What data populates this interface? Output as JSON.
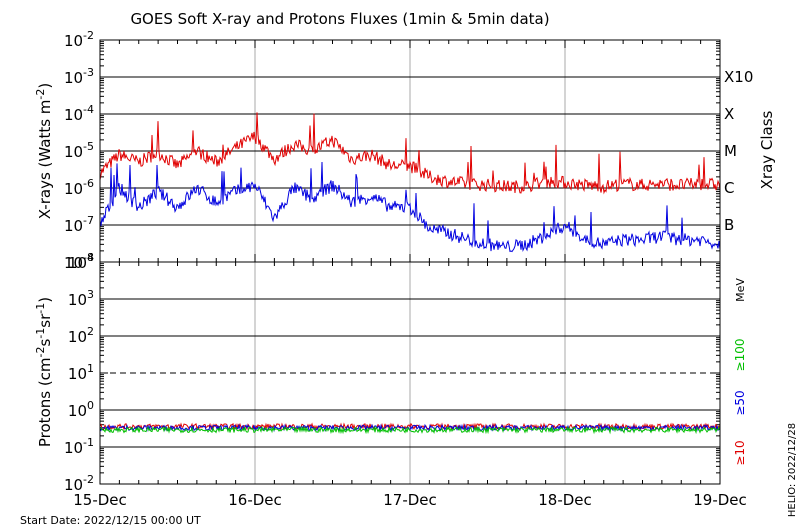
{
  "title": "GOES Soft X-ray and Protons Fluxes   (1min & 5min data)",
  "footer_start": "Start Date: 2022/12/15 00:00 UT",
  "footer_credit": "HELIO: 2022/12/28",
  "chart_data": [
    {
      "type": "line",
      "panel": "xray",
      "ylabel": "X-rays (Watts m",
      "ylabel_sup": "-2",
      "ylabel_close": ")",
      "yscale": "log",
      "ylim": [
        1e-08,
        0.01
      ],
      "ytick_exponents": [
        -2,
        -3,
        -4,
        -5,
        -6,
        -7,
        -8
      ],
      "right_axis_title": "Xray Class",
      "class_labels": [
        {
          "label": "X10",
          "value": 0.001
        },
        {
          "label": "X",
          "value": 0.0001
        },
        {
          "label": "M",
          "value": 1e-05
        },
        {
          "label": "C",
          "value": 1e-06
        },
        {
          "label": "B",
          "value": 1e-07
        }
      ],
      "x": [
        "12-15 00:00",
        "12-15 03:00",
        "12-15 06:00",
        "12-15 09:00",
        "12-15 12:00",
        "12-15 15:00",
        "12-15 18:00",
        "12-15 21:00",
        "12-16 00:00",
        "12-16 03:00",
        "12-16 06:00",
        "12-16 09:00",
        "12-16 12:00",
        "12-16 15:00",
        "12-16 18:00",
        "12-16 21:00",
        "12-17 00:00",
        "12-17 03:00",
        "12-17 06:00",
        "12-17 09:00",
        "12-17 12:00",
        "12-17 15:00",
        "12-17 18:00",
        "12-17 21:00",
        "12-18 00:00",
        "12-18 03:00",
        "12-18 06:00",
        "12-18 09:00",
        "12-18 12:00",
        "12-18 15:00",
        "12-18 18:00",
        "12-18 21:00",
        "12-19 00:00"
      ],
      "series": [
        {
          "color": "#e00000",
          "values": [
            2.5e-06,
            8e-06,
            5e-06,
            9e-06,
            4e-06,
            1e-05,
            5e-06,
            1.2e-05,
            2.5e-05,
            6e-06,
            1.5e-05,
            1e-05,
            2e-05,
            6e-06,
            8e-06,
            4e-06,
            4e-06,
            2e-06,
            1.5e-06,
            1.3e-06,
            1.2e-06,
            1.1e-06,
            1.1e-06,
            1.5e-06,
            1.4e-06,
            1.2e-06,
            1.1e-06,
            1.3e-06,
            1.2e-06,
            1.3e-06,
            1.2e-06,
            1.3e-06,
            1.2e-06
          ]
        },
        {
          "color": "#0000e0",
          "values": [
            1e-07,
            1e-06,
            3e-07,
            8e-07,
            3e-07,
            1e-06,
            4e-07,
            8e-07,
            1.2e-06,
            1.5e-07,
            1e-06,
            5e-07,
            1.2e-06,
            4e-07,
            6e-07,
            3e-07,
            3e-07,
            8e-08,
            6e-08,
            4e-08,
            3e-08,
            2.5e-08,
            3e-08,
            5e-08,
            1e-07,
            4e-08,
            3e-08,
            4e-08,
            4e-08,
            5e-08,
            4e-08,
            4e-08,
            3e-08
          ]
        }
      ]
    },
    {
      "type": "line",
      "panel": "protons",
      "ylabel": "Protons (cm",
      "ylabel_sup1": "-2",
      "ylabel_mid": "s",
      "ylabel_sup2": "-1",
      "ylabel_mid2": "sr",
      "ylabel_sup3": "-1",
      "ylabel_close": ")",
      "yscale": "log",
      "ylim": [
        0.01,
        10000
      ],
      "ytick_exponents": [
        4,
        3,
        2,
        1,
        0,
        -1,
        -2
      ],
      "threshold": 10,
      "right_unit": "MeV",
      "legend": [
        {
          "label": "≥100",
          "color": "#00c000"
        },
        {
          "label": "≥50",
          "color": "#0000e0"
        },
        {
          "label": "≥10",
          "color": "#e00000"
        }
      ],
      "series": [
        {
          "color": "#e00000",
          "level": 0.36
        },
        {
          "color": "#0000e0",
          "level": 0.33
        },
        {
          "color": "#00c000",
          "level": 0.29
        }
      ]
    }
  ],
  "x_tick_labels": [
    "15-Dec",
    "16-Dec",
    "17-Dec",
    "18-Dec",
    "19-Dec"
  ]
}
